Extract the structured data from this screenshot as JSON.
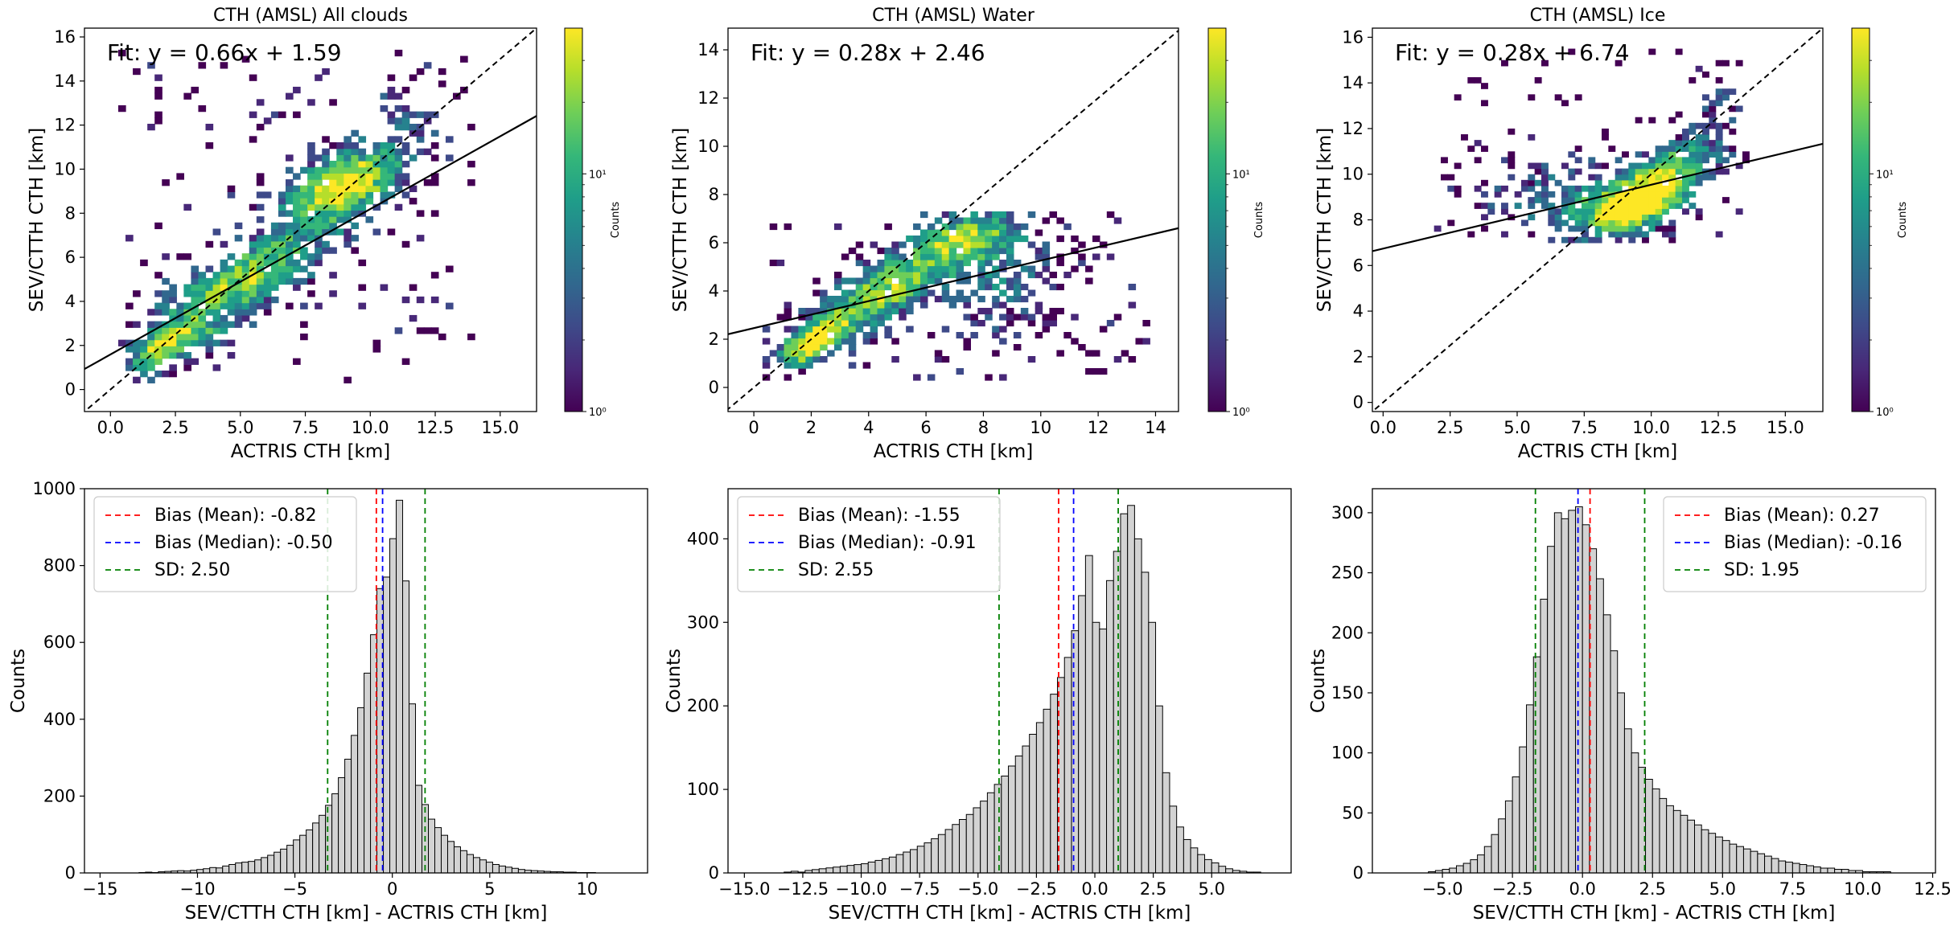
{
  "figure": {
    "colorbar_label": "Counts",
    "colorbar_ticks": [
      "10⁰",
      "10¹"
    ],
    "cmap": [
      "#440154",
      "#482878",
      "#3e4a89",
      "#31688e",
      "#26828e",
      "#1f9e89",
      "#35b779",
      "#6ece58",
      "#b5de2b",
      "#fde725"
    ]
  },
  "chart_data": [
    {
      "type": "heatmap",
      "title": "CTH (AMSL) All clouds",
      "xlabel": "ACTRIS CTH [km]",
      "ylabel": "SEV/CTTH CTH [km]",
      "xlim": [
        -1,
        16.4
      ],
      "ylim": [
        -1,
        16.4
      ],
      "xticks": [
        0.0,
        2.5,
        5.0,
        7.5,
        10.0,
        12.5,
        15.0
      ],
      "xtick_labels": [
        "0.0",
        "2.5",
        "5.0",
        "7.5",
        "10.0",
        "12.5",
        "15.0"
      ],
      "yticks": [
        0,
        2,
        4,
        6,
        8,
        10,
        12,
        14,
        16
      ],
      "ytick_labels": [
        "0",
        "2",
        "4",
        "6",
        "8",
        "10",
        "12",
        "14",
        "16"
      ],
      "fit": {
        "slope": 0.66,
        "intercept": 1.59,
        "label": "Fit: y = 0.66x + 1.59"
      },
      "one_to_one": true,
      "density": {
        "clusters": [
          {
            "x": 9.0,
            "y": 9.3,
            "sx": 1.6,
            "sy": 1.2,
            "rho": 0.55,
            "w": 1.0
          },
          {
            "x": 5.0,
            "y": 4.9,
            "sx": 2.2,
            "sy": 1.6,
            "rho": 0.75,
            "w": 0.8
          },
          {
            "x": 1.8,
            "y": 1.8,
            "sx": 0.8,
            "sy": 0.8,
            "rho": 0.6,
            "w": 0.7
          },
          {
            "x": 3.5,
            "y": 2.4,
            "sx": 0.8,
            "sy": 0.5,
            "rho": 0.2,
            "w": 0.4
          },
          {
            "x": 11.5,
            "y": 12.8,
            "sx": 0.9,
            "sy": 1.0,
            "rho": 0.4,
            "w": 0.25
          }
        ],
        "xrange": [
          0.3,
          14.0
        ],
        "yrange": [
          0.3,
          15.3
        ],
        "bin": 0.28,
        "seed": 11
      }
    },
    {
      "type": "heatmap",
      "title": "CTH (AMSL) Water",
      "xlabel": "ACTRIS CTH [km]",
      "ylabel": "SEV/CTTH CTH [km]",
      "xlim": [
        -0.9,
        14.8
      ],
      "ylim": [
        -1,
        14.9
      ],
      "xticks": [
        0,
        2,
        4,
        6,
        8,
        10,
        12,
        14
      ],
      "xtick_labels": [
        "0",
        "2",
        "4",
        "6",
        "8",
        "10",
        "12",
        "14"
      ],
      "yticks": [
        0,
        2,
        4,
        6,
        8,
        10,
        12,
        14
      ],
      "ytick_labels": [
        "0",
        "2",
        "4",
        "6",
        "8",
        "10",
        "12",
        "14"
      ],
      "fit": {
        "slope": 0.28,
        "intercept": 2.46,
        "label": "Fit: y = 0.28x + 2.46"
      },
      "one_to_one": true,
      "density": {
        "clusters": [
          {
            "x": 2.0,
            "y": 1.9,
            "sx": 0.8,
            "sy": 0.7,
            "rho": 0.6,
            "w": 1.0
          },
          {
            "x": 4.5,
            "y": 4.0,
            "sx": 1.5,
            "sy": 1.2,
            "rho": 0.7,
            "w": 0.8
          },
          {
            "x": 7.5,
            "y": 6.3,
            "sx": 1.4,
            "sy": 0.7,
            "rho": 0.3,
            "w": 0.6
          },
          {
            "x": 8.5,
            "y": 4.5,
            "sx": 1.5,
            "sy": 1.4,
            "rho": 0.0,
            "w": 0.35
          }
        ],
        "xrange": [
          0.3,
          13.6
        ],
        "yrange": [
          0.3,
          7.2
        ],
        "bin": 0.25,
        "seed": 23
      }
    },
    {
      "type": "heatmap",
      "title": "CTH (AMSL) Ice",
      "xlabel": "ACTRIS CTH [km]",
      "ylabel": "SEV/CTTH CTH [km]",
      "xlim": [
        -0.4,
        16.4
      ],
      "ylim": [
        -0.4,
        16.4
      ],
      "xticks": [
        0.0,
        2.5,
        5.0,
        7.5,
        10.0,
        12.5,
        15.0
      ],
      "xtick_labels": [
        "0.0",
        "2.5",
        "5.0",
        "7.5",
        "10.0",
        "12.5",
        "15.0"
      ],
      "yticks": [
        0,
        2,
        4,
        6,
        8,
        10,
        12,
        14,
        16
      ],
      "ytick_labels": [
        "0",
        "2",
        "4",
        "6",
        "8",
        "10",
        "12",
        "14",
        "16"
      ],
      "fit": {
        "slope": 0.28,
        "intercept": 6.74,
        "label": "Fit: y = 0.28x + 6.74"
      },
      "one_to_one": true,
      "density": {
        "clusters": [
          {
            "x": 9.3,
            "y": 8.6,
            "sx": 1.3,
            "sy": 0.9,
            "rho": 0.5,
            "w": 1.0
          },
          {
            "x": 10.8,
            "y": 10.2,
            "sx": 1.2,
            "sy": 1.0,
            "rho": 0.5,
            "w": 0.6
          },
          {
            "x": 6.5,
            "y": 9.0,
            "sx": 2.2,
            "sy": 1.1,
            "rho": 0.1,
            "w": 0.3
          },
          {
            "x": 12.3,
            "y": 12.8,
            "sx": 0.6,
            "sy": 1.0,
            "rho": 0.3,
            "w": 0.2
          }
        ],
        "xrange": [
          1.9,
          13.8
        ],
        "yrange": [
          7.0,
          15.3
        ],
        "bin": 0.25,
        "seed": 37
      }
    },
    {
      "type": "bar",
      "ylabel": "Counts",
      "xlabel": "SEV/CTTH CTH [km] - ACTRIS CTH [km]",
      "xlim": [
        -15.8,
        13.1
      ],
      "ylim": [
        0,
        1000
      ],
      "xticks": [
        -15,
        -10,
        -5,
        0,
        5,
        10
      ],
      "xtick_labels": [
        "−15",
        "−10",
        "−5",
        "0",
        "5",
        "10"
      ],
      "yticks": [
        0,
        200,
        400,
        600,
        800,
        1000
      ],
      "ytick_labels": [
        "0",
        "200",
        "400",
        "600",
        "800",
        "1000"
      ],
      "bin_start": -13.0,
      "bin_width": 0.33,
      "values": [
        1,
        2,
        1,
        3,
        4,
        5,
        6,
        5,
        7,
        9,
        11,
        14,
        13,
        18,
        22,
        26,
        28,
        30,
        34,
        40,
        46,
        54,
        62,
        72,
        86,
        98,
        112,
        130,
        150,
        176,
        206,
        248,
        296,
        358,
        430,
        520,
        620,
        740,
        770,
        870,
        970,
        760,
        440,
        228,
        178,
        140,
        118,
        98,
        82,
        68,
        58,
        48,
        40,
        34,
        28,
        22,
        18,
        15,
        12,
        9,
        7,
        6,
        5,
        4,
        3,
        3,
        2,
        2,
        1,
        1,
        1
      ],
      "lines": [
        {
          "label": "Bias (Mean): -0.82",
          "x": -0.82,
          "color": "#ff0000"
        },
        {
          "label": "Bias (Median): -0.50",
          "x": -0.5,
          "color": "#0000ff"
        },
        {
          "label": "SD: 2.50",
          "x": [
            -3.32,
            1.68
          ],
          "color": "#008000"
        }
      ],
      "legend": "top-left"
    },
    {
      "type": "bar",
      "ylabel": "Counts",
      "xlabel": "SEV/CTTH CTH [km] - ACTRIS CTH [km]",
      "xlim": [
        -15.7,
        8.4
      ],
      "ylim": [
        0,
        460
      ],
      "xticks": [
        -15.0,
        -12.5,
        -10.0,
        -7.5,
        -5.0,
        -2.5,
        0.0,
        2.5,
        5.0
      ],
      "xtick_labels": [
        "−15.0",
        "−12.5",
        "−10.0",
        "−7.5",
        "−5.0",
        "−2.5",
        "0.0",
        "2.5",
        "5.0"
      ],
      "yticks": [
        0,
        100,
        200,
        300,
        400
      ],
      "ytick_labels": [
        "0",
        "100",
        "200",
        "300",
        "400"
      ],
      "bin_start": -13.3,
      "bin_width": 0.3,
      "values": [
        1,
        2,
        1,
        3,
        4,
        5,
        6,
        7,
        8,
        9,
        10,
        11,
        13,
        15,
        17,
        19,
        22,
        25,
        28,
        32,
        36,
        41,
        46,
        52,
        58,
        64,
        70,
        78,
        86,
        96,
        106,
        116,
        128,
        140,
        152,
        166,
        180,
        196,
        214,
        234,
        258,
        290,
        332,
        380,
        300,
        292,
        350,
        385,
        430,
        440,
        400,
        360,
        300,
        200,
        120,
        80,
        55,
        40,
        30,
        22,
        16,
        12,
        8,
        5,
        3,
        2,
        1,
        1
      ],
      "lines": [
        {
          "label": "Bias (Mean): -1.55",
          "x": -1.55,
          "color": "#ff0000"
        },
        {
          "label": "Bias (Median): -0.91",
          "x": -0.91,
          "color": "#0000ff"
        },
        {
          "label": "SD: 2.55",
          "x": [
            -4.1,
            1.0
          ],
          "color": "#008000"
        }
      ],
      "legend": "top-left"
    },
    {
      "type": "bar",
      "ylabel": "Counts",
      "xlabel": "SEV/CTTH CTH [km] - ACTRIS CTH [km]",
      "xlim": [
        -7.5,
        12.6
      ],
      "ylim": [
        0,
        320
      ],
      "xticks": [
        -5.0,
        -2.5,
        0.0,
        2.5,
        5.0,
        7.5,
        10.0,
        12.5
      ],
      "xtick_labels": [
        "−5.0",
        "−2.5",
        "0.0",
        "2.5",
        "5.0",
        "7.5",
        "10.0",
        "12.5"
      ],
      "yticks": [
        0,
        50,
        100,
        150,
        200,
        250,
        300
      ],
      "ytick_labels": [
        "0",
        "50",
        "100",
        "150",
        "200",
        "250",
        "300"
      ],
      "bin_start": -5.5,
      "bin_width": 0.25,
      "values": [
        1,
        2,
        3,
        4,
        6,
        8,
        11,
        15,
        22,
        32,
        45,
        60,
        80,
        105,
        140,
        180,
        228,
        272,
        300,
        295,
        302,
        305,
        290,
        270,
        245,
        215,
        185,
        150,
        120,
        100,
        88,
        78,
        70,
        62,
        56,
        52,
        48,
        44,
        40,
        36,
        33,
        30,
        27,
        24,
        22,
        20,
        18,
        16,
        14,
        12,
        10,
        9,
        8,
        7,
        6,
        5,
        4,
        4,
        3,
        3,
        2,
        2,
        1,
        1,
        1,
        1
      ],
      "lines": [
        {
          "label": "Bias (Mean): 0.27",
          "x": 0.27,
          "color": "#ff0000"
        },
        {
          "label": "Bias (Median): -0.16",
          "x": -0.16,
          "color": "#0000ff"
        },
        {
          "label": "SD: 1.95",
          "x": [
            -1.68,
            2.22
          ],
          "color": "#008000"
        }
      ],
      "legend": "top-right"
    }
  ]
}
